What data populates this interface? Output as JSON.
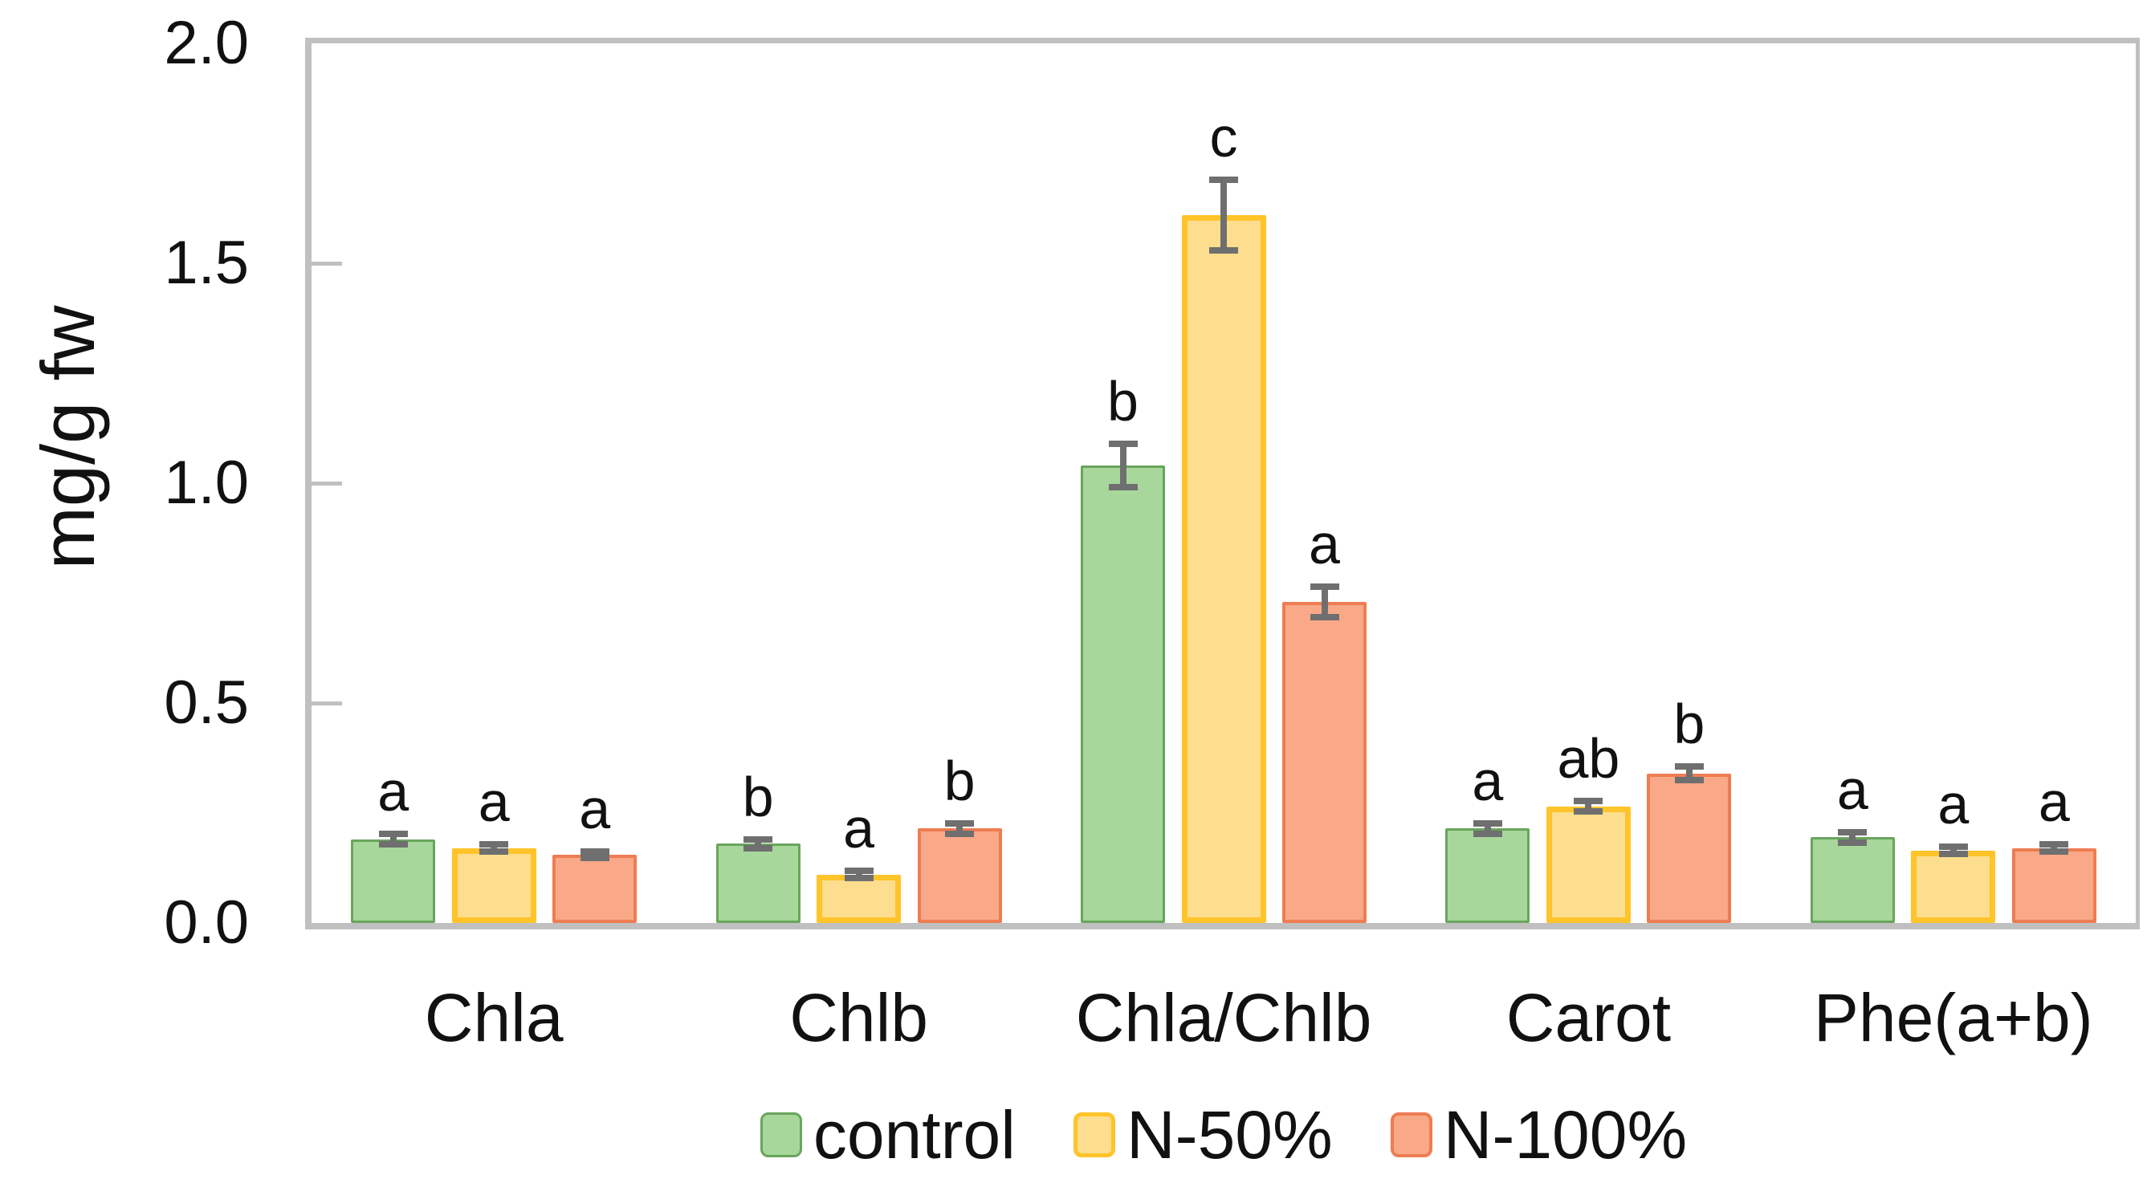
{
  "figure": {
    "background": "#ffffff"
  },
  "chart_data": {
    "type": "bar",
    "title": "",
    "xlabel": "",
    "ylabel": "mg/g fw",
    "ylim": [
      0.0,
      2.0
    ],
    "yticks": [
      0.0,
      0.5,
      1.0,
      1.5,
      2.0
    ],
    "ytick_labels": [
      "0.0",
      "0.5",
      "1.0",
      "1.5",
      "2.0"
    ],
    "categories": [
      "Chla",
      "Chlb",
      "Chla/Chlb",
      "Carot",
      "Phe(a+b)"
    ],
    "grid": false,
    "legend_position": "bottom",
    "axis_color": "#c0c0c0",
    "error_bar_color": "#6f6f6f",
    "series": [
      {
        "name": "control",
        "fill": "#a7d79b",
        "border": "#69a55c",
        "border_width": 3,
        "values": [
          0.19,
          0.18,
          1.04,
          0.215,
          0.195
        ],
        "errors": [
          0.012,
          0.01,
          0.05,
          0.012,
          0.012
        ],
        "letters": [
          "a",
          "b",
          "b",
          "a",
          "a"
        ]
      },
      {
        "name": "N-50%",
        "fill": "#fdde8e",
        "border": "#ffc42a",
        "border_width": 7,
        "values": [
          0.17,
          0.11,
          1.61,
          0.265,
          0.165
        ],
        "errors": [
          0.008,
          0.008,
          0.08,
          0.012,
          0.008
        ],
        "letters": [
          "a",
          "a",
          "c",
          "ab",
          "a"
        ]
      },
      {
        "name": "N-100%",
        "fill": "#f9a987",
        "border": "#ee7c52",
        "border_width": 4,
        "values": [
          0.155,
          0.215,
          0.73,
          0.34,
          0.17
        ],
        "errors": [
          0.008,
          0.012,
          0.035,
          0.016,
          0.008
        ],
        "letters": [
          "a",
          "b",
          "a",
          "b",
          "a"
        ]
      }
    ]
  }
}
